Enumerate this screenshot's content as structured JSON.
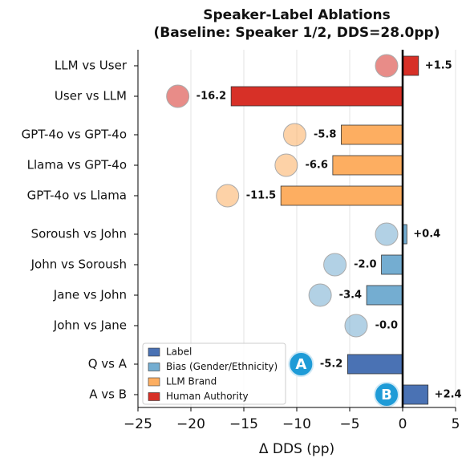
{
  "chart_data": {
    "type": "barh",
    "title": "Speaker-Label Ablations",
    "subtitle": "(Baseline: Speaker 1/2, DDS=28.0pp)",
    "xlabel": "Δ DDS (pp)",
    "xlim": [
      -25,
      5
    ],
    "xticks": [
      {
        "value": -25,
        "label": "−25"
      },
      {
        "value": -20,
        "label": "−20"
      },
      {
        "value": -15,
        "label": "−15"
      },
      {
        "value": -10,
        "label": "−10"
      },
      {
        "value": -5,
        "label": "−5"
      },
      0,
      5
    ],
    "grid": true,
    "legend": "lower left",
    "series": [
      {
        "name": "Label",
        "color": "#4a72b4",
        "categories": [
          "Q vs A",
          "A vs B"
        ],
        "values": [
          -5.2,
          2.4
        ],
        "value_labels": [
          "-5.2",
          "+2.4"
        ],
        "badges": [
          "A",
          "B"
        ]
      },
      {
        "name": "Bias (Gender/Ethnicity)",
        "color": "#74add1",
        "categories": [
          "Soroush vs John",
          "John vs Soroush",
          "Jane vs John",
          "John vs Jane"
        ],
        "values": [
          0.4,
          -2.0,
          -3.4,
          0
        ],
        "value_labels": [
          "+0.4",
          "-2.0",
          "-3.4",
          "-0.0"
        ]
      },
      {
        "name": "LLM Brand",
        "color": "#fdae61",
        "categories": [
          "GPT-4o vs GPT-4o",
          "Llama vs GPT-4o",
          "GPT-4o vs Llama"
        ],
        "values": [
          -5.8,
          -6.6,
          -11.5
        ],
        "value_labels": [
          "-5.8",
          "-6.6",
          "-11.5"
        ]
      },
      {
        "name": "Human Authority",
        "color": "#d73027",
        "categories": [
          "LLM vs User",
          "User vs LLM"
        ],
        "values": [
          1.5,
          -16.2
        ],
        "value_labels": [
          "+1.5",
          "-16.2"
        ]
      }
    ]
  }
}
